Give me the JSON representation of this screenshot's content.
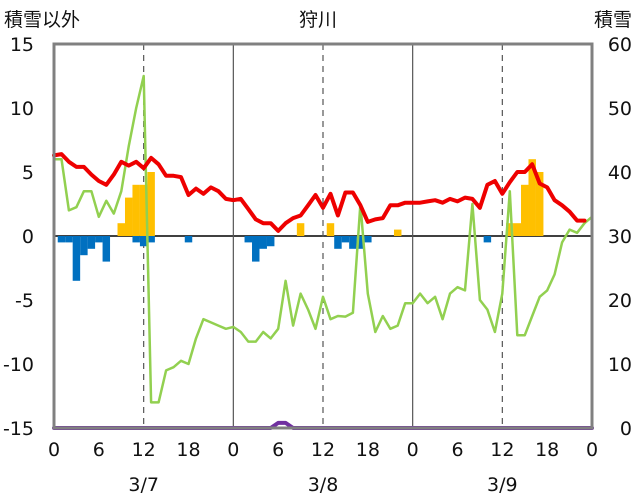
{
  "chart_data": {
    "type": "combo",
    "title": "狩川",
    "left_axis_label": "積雪以外",
    "right_axis_label": "積雪",
    "ylim_left": [
      -15,
      15
    ],
    "ylim_right": [
      0,
      60
    ],
    "left_ticks": [
      "15",
      "10",
      "5",
      "0",
      "-5",
      "-10",
      "-15"
    ],
    "right_ticks": [
      "60",
      "50",
      "40",
      "30",
      "20",
      "10",
      "0"
    ],
    "x_ticks": [
      "0",
      "6",
      "12",
      "18",
      "0",
      "6",
      "12",
      "18",
      "0",
      "6",
      "12",
      "18",
      "0"
    ],
    "date_labels": [
      "3/7",
      "3/8",
      "3/9"
    ],
    "x_range_hours": [
      0,
      72
    ],
    "colors": {
      "temperature": "#ee0000",
      "snow_depth": "#92d050",
      "snowfall": "#ffc000",
      "precipitation": "#0070c0",
      "sunshine": "#7030a0",
      "frame": "#808080"
    },
    "series": {
      "temperature": {
        "axis": "left",
        "x": [
          0,
          1,
          2,
          3,
          4,
          5,
          6,
          7,
          8,
          9,
          10,
          11,
          12,
          13,
          14,
          15,
          16,
          17,
          18,
          19,
          20,
          21,
          22,
          23,
          24,
          25,
          26,
          27,
          28,
          29,
          30,
          31,
          32,
          33,
          34,
          35,
          36,
          37,
          38,
          39,
          40,
          41,
          42,
          43,
          44,
          45,
          46,
          47,
          48,
          49,
          50,
          51,
          52,
          53,
          54,
          55,
          56,
          57,
          58,
          59,
          60,
          61,
          62,
          63,
          64,
          65,
          66,
          67,
          68,
          69,
          70,
          71
        ],
        "y": [
          6.3,
          6.4,
          5.8,
          5.4,
          5.4,
          4.8,
          4.3,
          4.0,
          4.8,
          5.8,
          5.5,
          5.8,
          5.3,
          6.1,
          5.6,
          4.7,
          4.7,
          4.6,
          3.2,
          3.7,
          3.3,
          3.8,
          3.5,
          2.9,
          2.8,
          2.9,
          2.1,
          1.3,
          1.0,
          1.0,
          0.4,
          1.0,
          1.4,
          1.6,
          2.4,
          3.2,
          2.2,
          3.3,
          1.6,
          3.4,
          3.4,
          2.4,
          1.1,
          1.3,
          1.4,
          2.4,
          2.4,
          2.6,
          2.6,
          2.6,
          2.7,
          2.8,
          2.6,
          2.9,
          2.7,
          3.0,
          2.9,
          2.2,
          4.0,
          4.3,
          3.3,
          4.2,
          5.0,
          5.0,
          5.6,
          4.1,
          3.8,
          2.8,
          2.4,
          1.9,
          1.2,
          1.2
        ]
      },
      "snow_depth": {
        "axis": "right",
        "x": [
          0,
          1,
          2,
          3,
          4,
          5,
          6,
          7,
          8,
          9,
          10,
          11,
          12,
          13,
          14,
          15,
          16,
          17,
          18,
          19,
          20,
          21,
          22,
          23,
          24,
          25,
          26,
          27,
          28,
          29,
          30,
          31,
          32,
          33,
          34,
          35,
          36,
          37,
          38,
          39,
          40,
          41,
          42,
          43,
          44,
          45,
          46,
          47,
          48,
          49,
          50,
          51,
          52,
          53,
          54,
          55,
          56,
          57,
          58,
          59,
          60,
          61,
          62,
          63,
          64,
          65,
          66,
          67,
          68,
          69,
          70,
          71,
          72
        ],
        "y": [
          42,
          42,
          34,
          34.5,
          37,
          37,
          33,
          35.5,
          33.5,
          37,
          44,
          50,
          55,
          4,
          4,
          9,
          9.5,
          10.5,
          10,
          14,
          17,
          16.5,
          16,
          15.5,
          15.8,
          15,
          13.5,
          13.5,
          15,
          14,
          15.5,
          23,
          16,
          21,
          18.5,
          15.5,
          20.5,
          17,
          17.5,
          17.4,
          18,
          35,
          21,
          15,
          17.5,
          15.5,
          16,
          19.5,
          19.5,
          21,
          19.5,
          20.5,
          17,
          21,
          22,
          21.5,
          35,
          20,
          18.5,
          15,
          21,
          37,
          14.5,
          14.5,
          17.5,
          20.5,
          21.5,
          24,
          29,
          31,
          30.5,
          32,
          33
        ]
      },
      "snowfall": {
        "axis": "left",
        "type": "bar",
        "x": [
          8,
          9,
          10,
          11,
          12,
          13,
          14,
          33,
          37,
          46,
          61,
          62,
          63,
          64,
          65,
          66
        ],
        "y": [
          0,
          1,
          3,
          4,
          4,
          5,
          0,
          1,
          1,
          0.5,
          1,
          1,
          4,
          6,
          5,
          0
        ]
      },
      "precipitation": {
        "axis": "left",
        "type": "bar",
        "x": [
          1,
          2,
          3,
          4,
          5,
          6,
          7,
          11,
          12,
          13,
          18,
          26,
          27,
          28,
          29,
          38,
          39,
          40,
          41,
          42,
          58
        ],
        "y": [
          -0.5,
          -0.5,
          -3.5,
          -1.5,
          -1.0,
          -0.5,
          -2.0,
          -0.5,
          -0.8,
          -0.5,
          -0.5,
          -0.5,
          -2.0,
          -1.0,
          -0.8,
          -1.0,
          -0.5,
          -1.0,
          -1.0,
          -0.5,
          -0.5
        ]
      },
      "sunshine": {
        "axis": "left",
        "x": [
          0,
          29,
          30,
          31,
          32,
          72
        ],
        "y": [
          -15,
          -15,
          -14.6,
          -14.6,
          -15,
          -15
        ]
      }
    }
  }
}
